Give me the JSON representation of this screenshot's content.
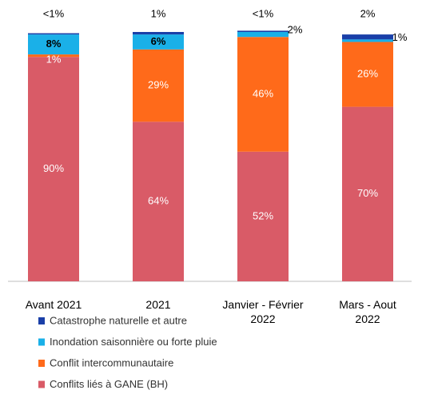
{
  "chart_data": {
    "type": "stacked_bar",
    "categories": [
      "Avant 2021",
      "2021",
      "Janvier - Février\n2022",
      "Mars - Aout\n2022"
    ],
    "ylim": [
      0,
      100
    ],
    "series": [
      {
        "name": "Conflits liés à GANE (BH)",
        "color": "#d95b67",
        "values": [
          90,
          64,
          52,
          70
        ],
        "value_labels": [
          "90%",
          "64%",
          "52%",
          "70%"
        ]
      },
      {
        "name": "Conflit intercommunautaire",
        "color": "#ff6a1a",
        "values": [
          1,
          29,
          46,
          26
        ],
        "value_labels": [
          "1%",
          "29%",
          "46%",
          "26%"
        ]
      },
      {
        "name": "Inondation saisonnière ou forte pluie",
        "color": "#1ab0e8",
        "values": [
          8,
          6,
          2,
          1
        ],
        "value_labels": [
          "8%",
          "6%",
          "2%",
          "1%"
        ]
      },
      {
        "name": "Catastrophe naturelle et autre",
        "color": "#1a3fa8",
        "values": [
          0.5,
          1,
          0.5,
          2
        ],
        "value_labels": [
          "<1%",
          "1%",
          "<1%",
          "2%"
        ]
      }
    ]
  }
}
